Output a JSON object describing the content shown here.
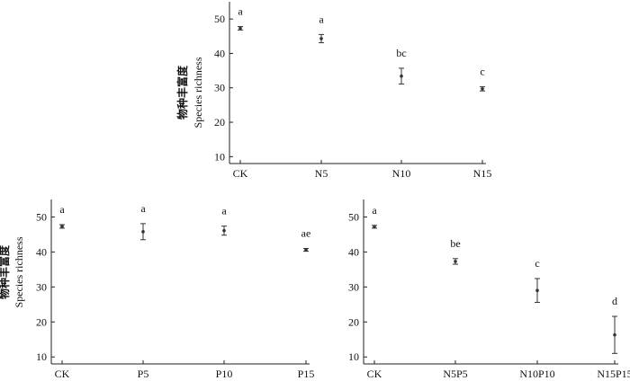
{
  "chart_data": [
    {
      "type": "scatter",
      "ylabel_cn": "物种丰富度",
      "ylabel_en": "Species richness",
      "categories": [
        "CK",
        "N5",
        "N10",
        "N15"
      ],
      "values": [
        47.3,
        44.3,
        33.4,
        29.7
      ],
      "errors": [
        0.5,
        1.2,
        2.3,
        0.6
      ],
      "significance": [
        "a",
        "a",
        "bc",
        "c"
      ],
      "ylim": [
        8,
        55
      ],
      "yticks": [
        10,
        20,
        30,
        40,
        50
      ],
      "grid": false
    },
    {
      "type": "scatter",
      "ylabel_cn": "物种丰富度",
      "ylabel_en": "Species richness",
      "categories": [
        "CK",
        "P5",
        "P10",
        "P15"
      ],
      "values": [
        47.3,
        45.8,
        46.1,
        40.6
      ],
      "errors": [
        0.5,
        2.3,
        1.3,
        0.4
      ],
      "significance": [
        "a",
        "a",
        "a",
        "ae"
      ],
      "ylim": [
        8,
        55
      ],
      "yticks": [
        10,
        20,
        30,
        40,
        50
      ],
      "grid": false
    },
    {
      "type": "scatter",
      "ylabel_cn": "",
      "ylabel_en": "",
      "categories": [
        "CK",
        "N5P5",
        "N10P10",
        "N15P15"
      ],
      "values": [
        47.2,
        37.3,
        29.0,
        16.3
      ],
      "errors": [
        0.4,
        0.8,
        3.4,
        5.3
      ],
      "significance": [
        "a",
        "be",
        "c",
        "d"
      ],
      "ylim": [
        8,
        55
      ],
      "yticks": [
        10,
        20,
        30,
        40,
        50
      ],
      "grid": false
    }
  ]
}
